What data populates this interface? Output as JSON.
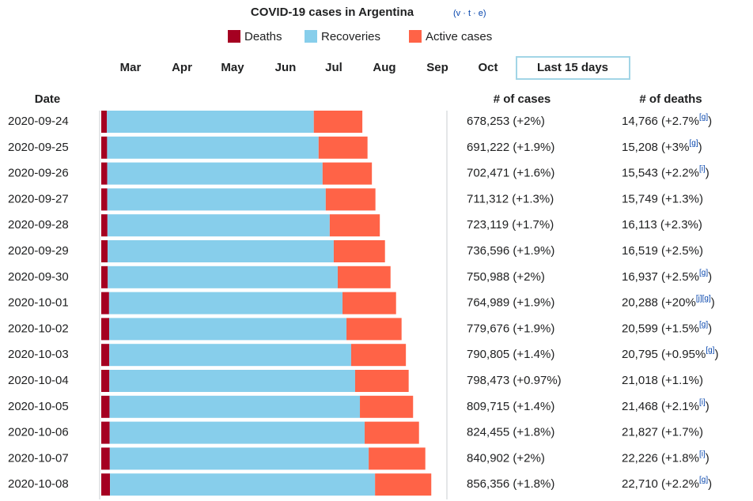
{
  "chart_data": {
    "type": "bar",
    "orientation": "horizontal",
    "stacked": true,
    "title": "COVID-19 cases in Argentina",
    "nav_links": "(v · t · e)",
    "months": [
      "Mar",
      "Apr",
      "May",
      "Jun",
      "Jul",
      "Aug",
      "Sep",
      "Oct"
    ],
    "selected_view": "Last 15 days",
    "column_headers": [
      "Date",
      "# of cases",
      "# of deaths"
    ],
    "categories": [
      "2020-09-24",
      "2020-09-25",
      "2020-09-26",
      "2020-09-27",
      "2020-09-28",
      "2020-09-29",
      "2020-09-30",
      "2020-10-01",
      "2020-10-02",
      "2020-10-03",
      "2020-10-04",
      "2020-10-05",
      "2020-10-06",
      "2020-10-07",
      "2020-10-08"
    ],
    "xlim": [
      0,
      880000
    ],
    "series": [
      {
        "name": "Deaths",
        "color": "#a50021",
        "values": [
          14766,
          15208,
          15543,
          15749,
          16113,
          16519,
          16937,
          20288,
          20599,
          20795,
          21018,
          21468,
          21827,
          22226,
          22710
        ]
      },
      {
        "name": "Recoveries",
        "color": "#87ceeb",
        "values": [
          537000,
          549000,
          559000,
          567000,
          577000,
          587000,
          597000,
          606000,
          616000,
          628000,
          638000,
          650000,
          662000,
          672000,
          688000
        ]
      },
      {
        "name": "Active cases",
        "color": "#ff6347",
        "values": [
          126000,
          127000,
          128000,
          129000,
          130000,
          133000,
          137000,
          139000,
          143000,
          142000,
          139000,
          138000,
          141000,
          147000,
          146000
        ]
      }
    ],
    "cases_text": [
      "678,253 (+2%)",
      "691,222 (+1.9%)",
      "702,471 (+1.6%)",
      "711,312 (+1.3%)",
      "723,119 (+1.7%)",
      "736,596 (+1.9%)",
      "750,988 (+2%)",
      "764,989 (+1.9%)",
      "779,676 (+1.9%)",
      "790,805 (+1.4%)",
      "798,473 (+0.97%)",
      "809,715 (+1.4%)",
      "824,455 (+1.8%)",
      "840,902 (+2%)",
      "856,356 (+1.8%)"
    ],
    "deaths_text": [
      {
        "text": "14,766 (+2.7%",
        "note": "[g]",
        "end": ")"
      },
      {
        "text": "15,208 (+3%",
        "note": "[g]",
        "end": ")"
      },
      {
        "text": "15,543 (+2.2%",
        "note": "[i]",
        "end": ")"
      },
      {
        "text": "15,749 (+1.3%)"
      },
      {
        "text": "16,113 (+2.3%)"
      },
      {
        "text": "16,519 (+2.5%)"
      },
      {
        "text": "16,937 (+2.5%",
        "note": "[g]",
        "end": ")"
      },
      {
        "text": "20,288 (+20%",
        "note": "[j][g]",
        "end": ")"
      },
      {
        "text": "20,599 (+1.5%",
        "note": "[g]",
        "end": ")"
      },
      {
        "text": "20,795 (+0.95%",
        "note": "[g]",
        "end": ")"
      },
      {
        "text": "21,018 (+1.1%)"
      },
      {
        "text": "21,468 (+2.1%",
        "note": "[i]",
        "end": ")"
      },
      {
        "text": "21,827 (+1.7%)"
      },
      {
        "text": "22,226 (+1.8%",
        "note": "[i]",
        "end": ")"
      },
      {
        "text": "22,710 (+2.2%",
        "note": "[g]",
        "end": ")"
      }
    ]
  }
}
